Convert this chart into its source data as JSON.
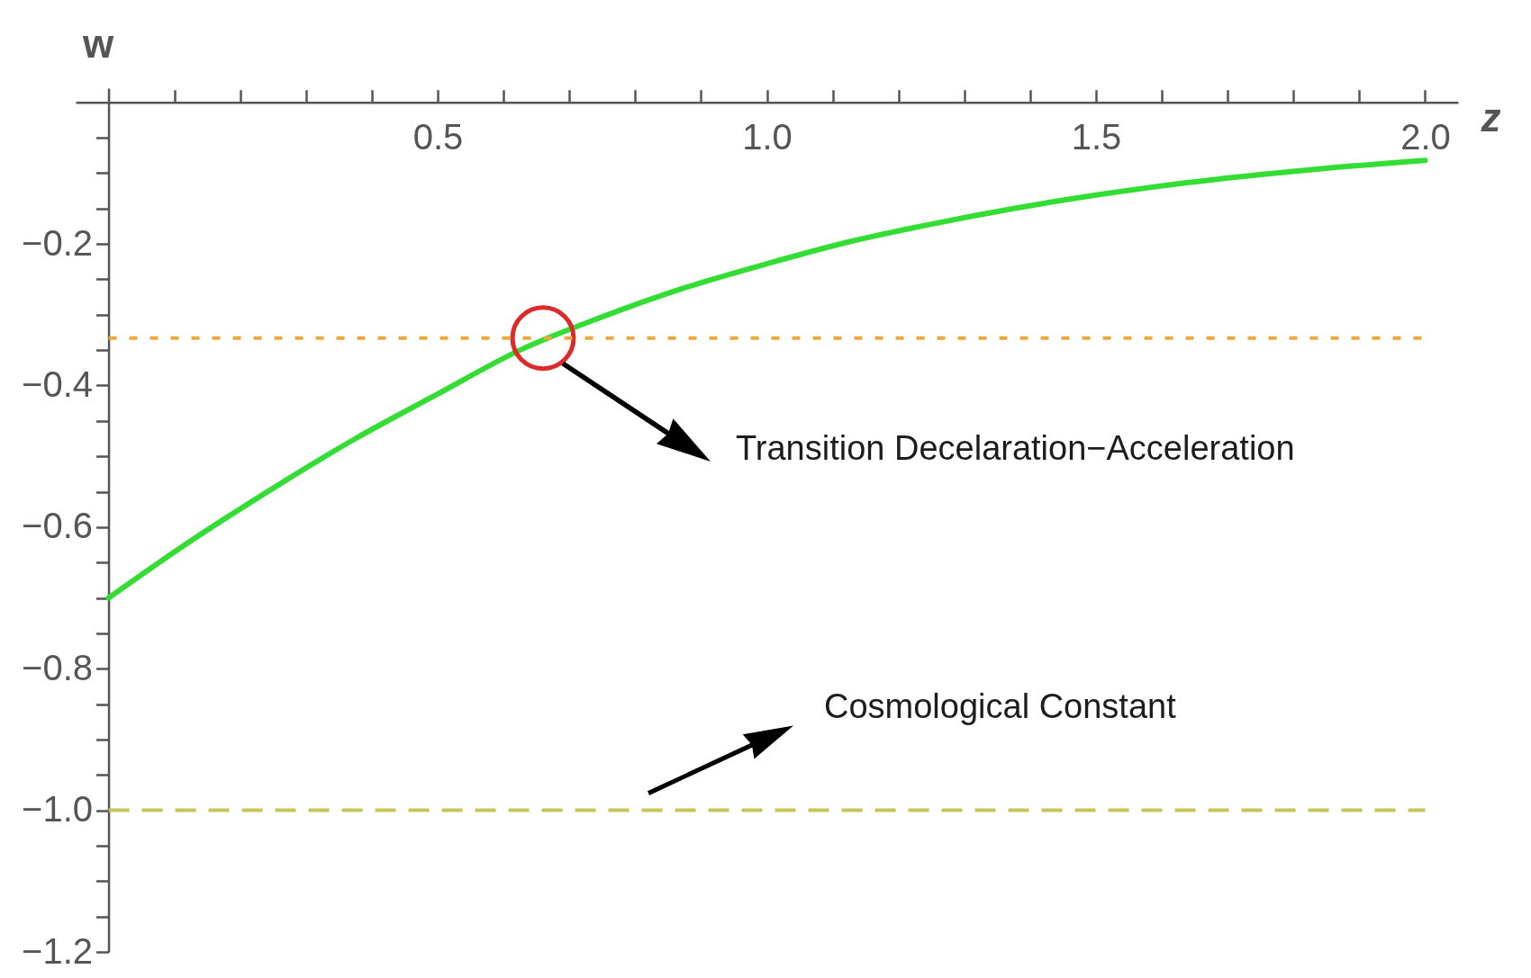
{
  "chart_data": {
    "type": "line",
    "xlabel": "z",
    "ylabel": "w",
    "series": [
      {
        "color": "#33dd33",
        "x": [
          0,
          0.1,
          0.25,
          0.375,
          0.5,
          0.625,
          0.75,
          0.875,
          1.0,
          1.125,
          1.25,
          1.375,
          1.5,
          1.625,
          1.75,
          1.875,
          2.0
        ],
        "values": [
          -0.7,
          -0.635,
          -0.545,
          -0.475,
          -0.412,
          -0.35,
          -0.303,
          -0.262,
          -0.228,
          -0.197,
          -0.172,
          -0.15,
          -0.131,
          -0.115,
          -0.102,
          -0.091,
          -0.082
        ]
      },
      {
        "type": "scatter",
        "color": "#dd2a2a",
        "x": [
          0.66
        ],
        "values": [
          -0.333
        ]
      }
    ],
    "xlim": [
      -0.05,
      2.05
    ],
    "ylim": [
      -1.2,
      0.02
    ],
    "xticks": [
      {
        "value": 0.1,
        "label": null
      },
      {
        "value": 0.2,
        "label": null
      },
      {
        "value": 0.3,
        "label": null
      },
      {
        "value": 0.4,
        "label": null
      },
      0.5,
      {
        "value": 0.6,
        "label": null
      },
      {
        "value": 0.7,
        "label": null
      },
      {
        "value": 0.8,
        "label": null
      },
      {
        "value": 0.9,
        "label": null
      },
      {
        "value": 1,
        "label": "1.0"
      },
      {
        "value": 1.1,
        "label": null
      },
      {
        "value": 1.2,
        "label": null
      },
      {
        "value": 1.3,
        "label": null
      },
      {
        "value": 1.4,
        "label": null
      },
      1.5,
      {
        "value": 1.6,
        "label": null
      },
      {
        "value": 1.7,
        "label": null
      },
      {
        "value": 1.8,
        "label": null
      },
      {
        "value": 1.9,
        "label": null
      },
      {
        "value": 2,
        "label": "2.0"
      }
    ],
    "yticks": [
      {
        "value": -0.05,
        "label": null
      },
      {
        "value": -0.1,
        "label": null
      },
      {
        "value": -0.15,
        "label": null
      },
      -0.2,
      {
        "value": -0.25,
        "label": null
      },
      {
        "value": -0.3,
        "label": null
      },
      {
        "value": -0.35,
        "label": null
      },
      -0.4,
      {
        "value": -0.45,
        "label": null
      },
      {
        "value": -0.5,
        "label": null
      },
      {
        "value": -0.55,
        "label": null
      },
      -0.6,
      {
        "value": -0.65,
        "label": null
      },
      {
        "value": -0.7,
        "label": null
      },
      {
        "value": -0.75,
        "label": null
      },
      -0.8,
      {
        "value": -0.85,
        "label": null
      },
      {
        "value": -0.9,
        "label": null
      },
      {
        "value": -0.95,
        "label": null
      },
      {
        "value": -1,
        "label": "−1.0"
      },
      {
        "value": -1.05,
        "label": null
      },
      {
        "value": -1.1,
        "label": null
      },
      {
        "value": -1.15,
        "label": null
      },
      -1.2
    ],
    "ref_lines": [
      {
        "axis": "y",
        "value": -0.333,
        "color": "#eda83c",
        "line_style": "dotted"
      },
      {
        "axis": "y",
        "value": -1,
        "label": "Cosmological Constant",
        "color": "#c5c55a",
        "line_style": "dashed"
      }
    ],
    "annotations": [
      "Transition Decelaration−Acceleration"
    ]
  }
}
